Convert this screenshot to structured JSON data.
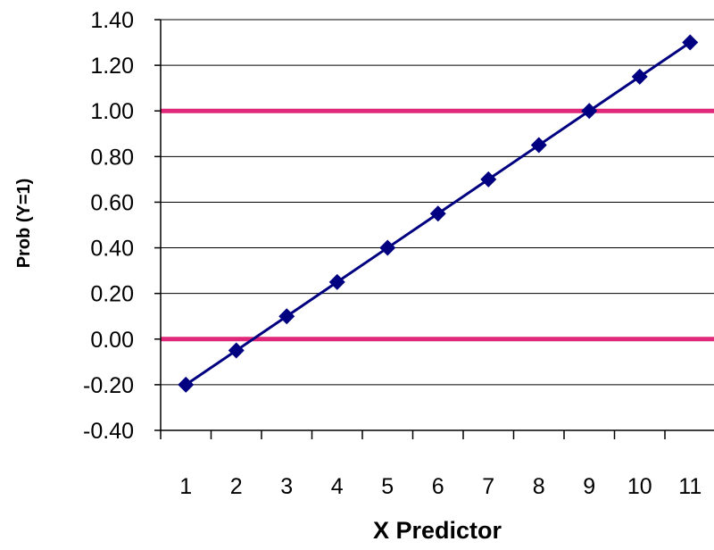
{
  "chart_data": {
    "type": "line",
    "xlabel": "X Predictor",
    "ylabel": "Prob (Y=1)",
    "categories": [
      "1",
      "2",
      "3",
      "4",
      "5",
      "6",
      "7",
      "8",
      "9",
      "10",
      "11"
    ],
    "ylim": [
      -0.4,
      1.4
    ],
    "yticks": [
      "1.40",
      "1.20",
      "1.00",
      "0.80",
      "0.60",
      "0.40",
      "0.20",
      "0.00",
      "-0.20",
      "-0.40"
    ],
    "ytick_values": [
      1.4,
      1.2,
      1.0,
      0.8,
      0.6,
      0.4,
      0.2,
      0.0,
      -0.2,
      -0.4
    ],
    "grid": true,
    "series": [
      {
        "values": [
          -0.2,
          -0.05,
          0.1,
          0.25,
          0.4,
          0.55,
          0.7,
          0.85,
          1.0,
          1.15,
          1.3
        ],
        "color": "#000080",
        "marker": "diamond"
      }
    ],
    "reference_lines": [
      {
        "y": 1.0,
        "color": "#E0287A"
      },
      {
        "y": 0.0,
        "color": "#E0287A"
      }
    ]
  }
}
